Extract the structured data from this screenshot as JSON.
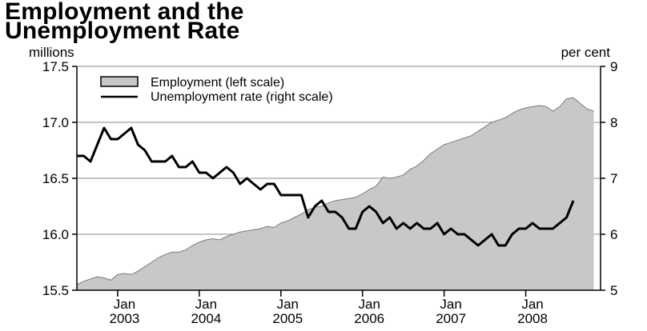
{
  "chart_data": {
    "type": "area+line",
    "title_lines": [
      "Employment and the",
      "Unemployment Rate"
    ],
    "left_axis_unit": "millions",
    "right_axis_unit": "per cent",
    "left_ticks": [
      "15.5",
      "16.0",
      "16.5",
      "17.0",
      "17.5"
    ],
    "left_tick_values": [
      15.5,
      16.0,
      16.5,
      17.0,
      17.5
    ],
    "right_ticks": [
      "5",
      "6",
      "7",
      "8",
      "9"
    ],
    "right_tick_values": [
      5,
      6,
      7,
      8,
      9
    ],
    "ylim_left": [
      15.5,
      17.5
    ],
    "ylim_right": [
      5,
      9
    ],
    "x_ticks": [
      {
        "month": "Jan",
        "year": "2003"
      },
      {
        "month": "Jan",
        "year": "2004"
      },
      {
        "month": "Jan",
        "year": "2005"
      },
      {
        "month": "Jan",
        "year": "2006"
      },
      {
        "month": "Jan",
        "year": "2007"
      },
      {
        "month": "Jan",
        "year": "2008"
      }
    ],
    "x_start": "2002-07",
    "x_end": "2008-12",
    "grid": true,
    "legend": [
      {
        "label": "Employment (left scale)",
        "kind": "area"
      },
      {
        "label": "Unemployment rate (right scale)",
        "kind": "line"
      }
    ],
    "series": [
      {
        "name": "Employment (left scale)",
        "axis": "left",
        "kind": "area",
        "color": "#c8c8c8",
        "points": [
          [
            "2002-07",
            15.55
          ],
          [
            "2002-08",
            15.58
          ],
          [
            "2002-09",
            15.6
          ],
          [
            "2002-10",
            15.62
          ],
          [
            "2002-11",
            15.61
          ],
          [
            "2002-12",
            15.59
          ],
          [
            "2003-01",
            15.64
          ],
          [
            "2003-02",
            15.65
          ],
          [
            "2003-03",
            15.64
          ],
          [
            "2003-04",
            15.67
          ],
          [
            "2003-05",
            15.71
          ],
          [
            "2003-06",
            15.75
          ],
          [
            "2003-07",
            15.79
          ],
          [
            "2003-08",
            15.82
          ],
          [
            "2003-09",
            15.84
          ],
          [
            "2003-10",
            15.84
          ],
          [
            "2003-11",
            15.86
          ],
          [
            "2003-12",
            15.9
          ],
          [
            "2004-01",
            15.93
          ],
          [
            "2004-02",
            15.95
          ],
          [
            "2004-03",
            15.96
          ],
          [
            "2004-04",
            15.95
          ],
          [
            "2004-05",
            15.98
          ],
          [
            "2004-06",
            16.0
          ],
          [
            "2004-07",
            16.02
          ],
          [
            "2004-08",
            16.03
          ],
          [
            "2004-09",
            16.04
          ],
          [
            "2004-10",
            16.05
          ],
          [
            "2004-11",
            16.07
          ],
          [
            "2004-12",
            16.06
          ],
          [
            "2005-01",
            16.1
          ],
          [
            "2005-02",
            16.12
          ],
          [
            "2005-03",
            16.15
          ],
          [
            "2005-04",
            16.18
          ],
          [
            "2005-05",
            16.22
          ],
          [
            "2005-06",
            16.24
          ],
          [
            "2005-07",
            16.25
          ],
          [
            "2005-08",
            16.28
          ],
          [
            "2005-09",
            16.3
          ],
          [
            "2005-10",
            16.31
          ],
          [
            "2005-11",
            16.32
          ],
          [
            "2005-12",
            16.33
          ],
          [
            "2006-01",
            16.36
          ],
          [
            "2006-02",
            16.4
          ],
          [
            "2006-03",
            16.43
          ],
          [
            "2006-04",
            16.51
          ],
          [
            "2006-05",
            16.5
          ],
          [
            "2006-06",
            16.51
          ],
          [
            "2006-07",
            16.53
          ],
          [
            "2006-08",
            16.58
          ],
          [
            "2006-09",
            16.61
          ],
          [
            "2006-10",
            16.66
          ],
          [
            "2006-11",
            16.72
          ],
          [
            "2006-12",
            16.76
          ],
          [
            "2007-01",
            16.8
          ],
          [
            "2007-02",
            16.82
          ],
          [
            "2007-03",
            16.84
          ],
          [
            "2007-04",
            16.86
          ],
          [
            "2007-05",
            16.88
          ],
          [
            "2007-06",
            16.92
          ],
          [
            "2007-07",
            16.96
          ],
          [
            "2007-08",
            17.0
          ],
          [
            "2007-09",
            17.02
          ],
          [
            "2007-10",
            17.04
          ],
          [
            "2007-11",
            17.08
          ],
          [
            "2007-12",
            17.11
          ],
          [
            "2008-01",
            17.13
          ],
          [
            "2008-02",
            17.14
          ],
          [
            "2008-03",
            17.15
          ],
          [
            "2008-04",
            17.14
          ],
          [
            "2008-05",
            17.1
          ],
          [
            "2008-06",
            17.14
          ],
          [
            "2008-07",
            17.21
          ],
          [
            "2008-08",
            17.22
          ],
          [
            "2008-09",
            17.17
          ],
          [
            "2008-10",
            17.12
          ],
          [
            "2008-11",
            17.1
          ]
        ]
      },
      {
        "name": "Unemployment rate (right scale)",
        "axis": "right",
        "kind": "line",
        "color": "#000000",
        "points": [
          [
            "2002-07",
            7.4
          ],
          [
            "2002-08",
            7.4
          ],
          [
            "2002-09",
            7.3
          ],
          [
            "2002-10",
            7.6
          ],
          [
            "2002-11",
            7.9
          ],
          [
            "2002-12",
            7.7
          ],
          [
            "2003-01",
            7.7
          ],
          [
            "2003-02",
            7.8
          ],
          [
            "2003-03",
            7.9
          ],
          [
            "2003-04",
            7.6
          ],
          [
            "2003-05",
            7.5
          ],
          [
            "2003-06",
            7.3
          ],
          [
            "2003-07",
            7.3
          ],
          [
            "2003-08",
            7.3
          ],
          [
            "2003-09",
            7.4
          ],
          [
            "2003-10",
            7.2
          ],
          [
            "2003-11",
            7.2
          ],
          [
            "2003-12",
            7.3
          ],
          [
            "2004-01",
            7.1
          ],
          [
            "2004-02",
            7.1
          ],
          [
            "2004-03",
            7.0
          ],
          [
            "2004-04",
            7.1
          ],
          [
            "2004-05",
            7.2
          ],
          [
            "2004-06",
            7.1
          ],
          [
            "2004-07",
            6.9
          ],
          [
            "2004-08",
            7.0
          ],
          [
            "2004-09",
            6.9
          ],
          [
            "2004-10",
            6.8
          ],
          [
            "2004-11",
            6.9
          ],
          [
            "2004-12",
            6.9
          ],
          [
            "2005-01",
            6.7
          ],
          [
            "2005-02",
            6.7
          ],
          [
            "2005-03",
            6.7
          ],
          [
            "2005-04",
            6.7
          ],
          [
            "2005-05",
            6.3
          ],
          [
            "2005-06",
            6.5
          ],
          [
            "2005-07",
            6.6
          ],
          [
            "2005-08",
            6.4
          ],
          [
            "2005-09",
            6.4
          ],
          [
            "2005-10",
            6.3
          ],
          [
            "2005-11",
            6.1
          ],
          [
            "2005-12",
            6.1
          ],
          [
            "2006-01",
            6.4
          ],
          [
            "2006-02",
            6.5
          ],
          [
            "2006-03",
            6.4
          ],
          [
            "2006-04",
            6.2
          ],
          [
            "2006-05",
            6.3
          ],
          [
            "2006-06",
            6.1
          ],
          [
            "2006-07",
            6.2
          ],
          [
            "2006-08",
            6.1
          ],
          [
            "2006-09",
            6.2
          ],
          [
            "2006-10",
            6.1
          ],
          [
            "2006-11",
            6.1
          ],
          [
            "2006-12",
            6.2
          ],
          [
            "2007-01",
            6.0
          ],
          [
            "2007-02",
            6.1
          ],
          [
            "2007-03",
            6.0
          ],
          [
            "2007-04",
            6.0
          ],
          [
            "2007-05",
            5.9
          ],
          [
            "2007-06",
            5.8
          ],
          [
            "2007-07",
            5.9
          ],
          [
            "2007-08",
            6.0
          ],
          [
            "2007-09",
            5.8
          ],
          [
            "2007-10",
            5.8
          ],
          [
            "2007-11",
            6.0
          ],
          [
            "2007-12",
            6.1
          ],
          [
            "2008-01",
            6.1
          ],
          [
            "2008-02",
            6.2
          ],
          [
            "2008-03",
            6.1
          ],
          [
            "2008-04",
            6.1
          ],
          [
            "2008-05",
            6.1
          ],
          [
            "2008-06",
            6.2
          ],
          [
            "2008-07",
            6.3
          ],
          [
            "2008-08",
            6.6
          ]
        ]
      }
    ]
  }
}
